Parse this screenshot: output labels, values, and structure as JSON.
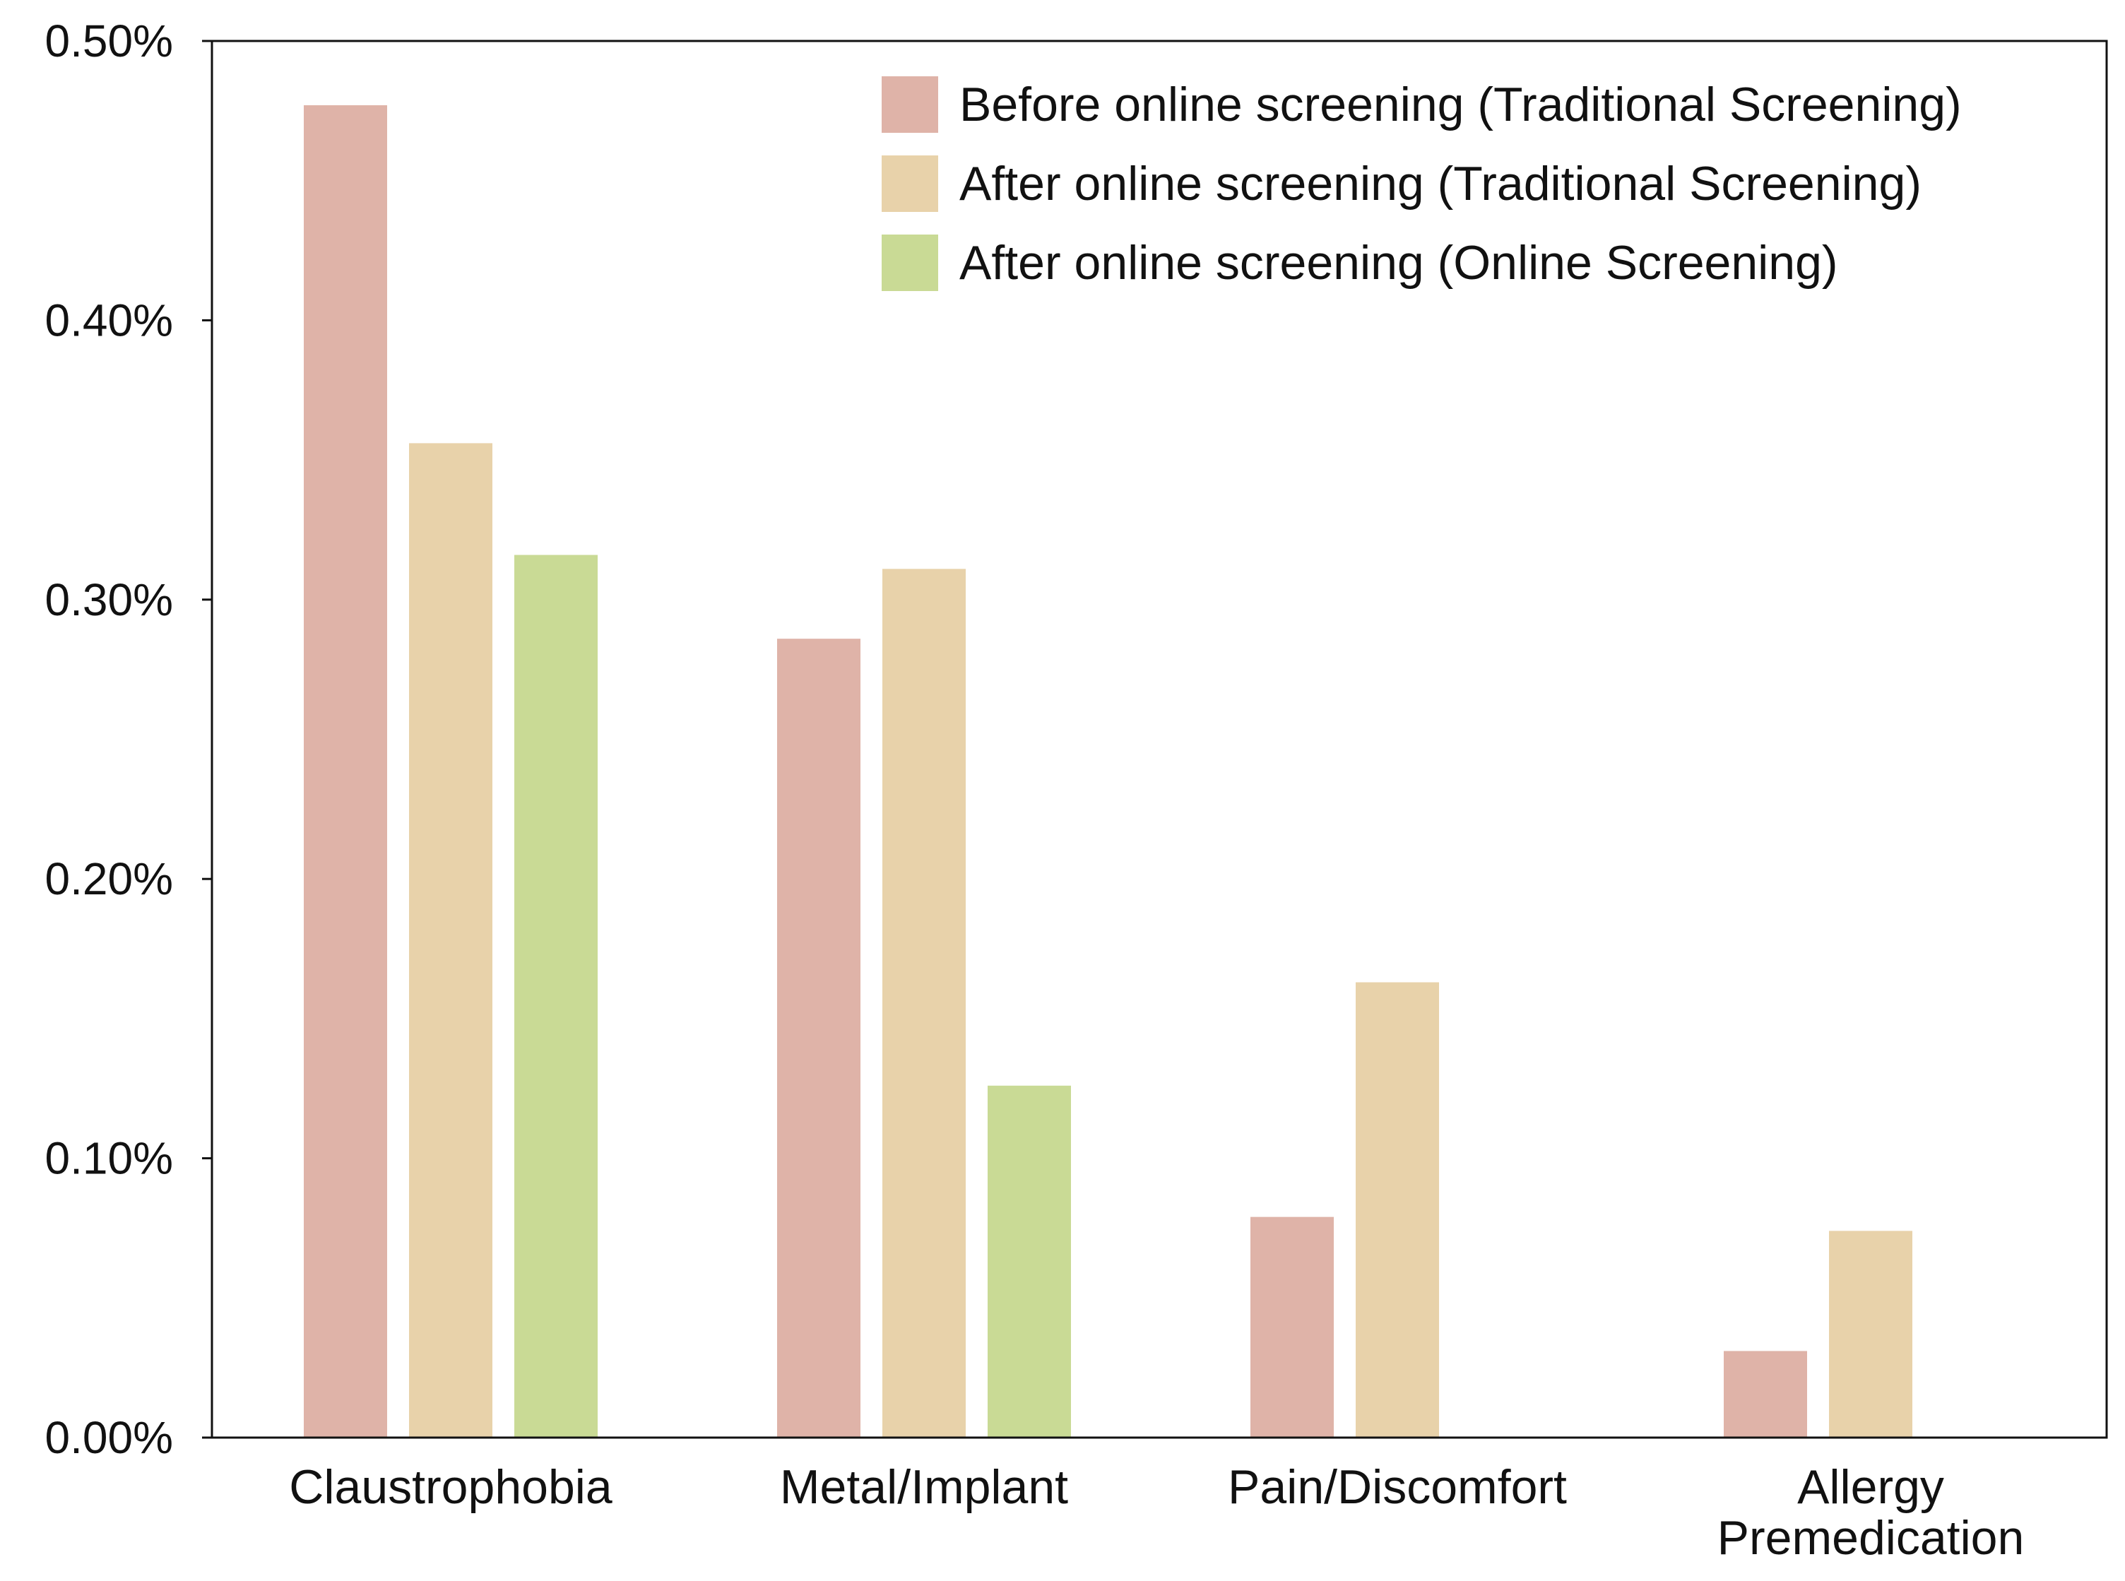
{
  "chart_data": {
    "type": "bar",
    "title": "",
    "xlabel": "",
    "ylabel": "",
    "ylim": [
      0,
      0.5
    ],
    "grid": false,
    "legend_position": "top-right",
    "y_ticks": [
      {
        "value": 0.0,
        "label": "0.00%"
      },
      {
        "value": 0.1,
        "label": "0.10%"
      },
      {
        "value": 0.2,
        "label": "0.20%"
      },
      {
        "value": 0.3,
        "label": "0.30%"
      },
      {
        "value": 0.4,
        "label": "0.40%"
      },
      {
        "value": 0.5,
        "label": "0.50%"
      }
    ],
    "categories": [
      [
        "Claustrophobia"
      ],
      [
        "Metal/Implant"
      ],
      [
        "Pain/Discomfort"
      ],
      [
        "Allergy",
        "Premedication"
      ]
    ],
    "series": [
      {
        "name": "Before online screening (Traditional Screening)",
        "color": "#dfb3a8",
        "values": [
          0.477,
          0.286,
          0.079,
          0.031
        ]
      },
      {
        "name": "After online screening (Traditional Screening)",
        "color": "#e8d2aa",
        "values": [
          0.356,
          0.311,
          0.163,
          0.074
        ]
      },
      {
        "name": "After online screening (Online Screening)",
        "color": "#c9da95",
        "values": [
          0.316,
          0.126,
          null,
          null
        ]
      }
    ]
  }
}
